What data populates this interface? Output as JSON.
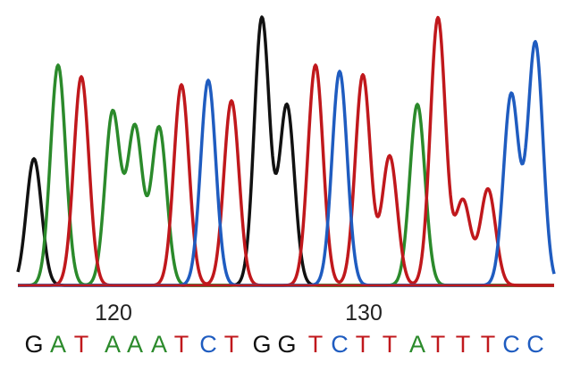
{
  "chart_data": {
    "type": "line",
    "title": "",
    "xlabel": "",
    "ylabel": "",
    "start_position": 117,
    "x_ticks": [
      120,
      130
    ],
    "bases": [
      "G",
      "A",
      "T",
      "A",
      "A",
      "A",
      "T",
      "C",
      "T",
      "G",
      "G",
      "T",
      "C",
      "T",
      "T",
      "A",
      "T",
      "T",
      "T",
      "C",
      "C"
    ],
    "peak_heights": [
      142,
      247,
      234,
      194,
      177,
      177,
      225,
      230,
      207,
      300,
      202,
      247,
      240,
      236,
      145,
      203,
      300,
      95,
      108,
      214,
      272
    ],
    "ylim": [
      0,
      300
    ],
    "grid": false,
    "colors": {
      "A": "#2b8a2b",
      "C": "#1f5cc0",
      "G": "#111111",
      "T": "#c0181c"
    }
  }
}
